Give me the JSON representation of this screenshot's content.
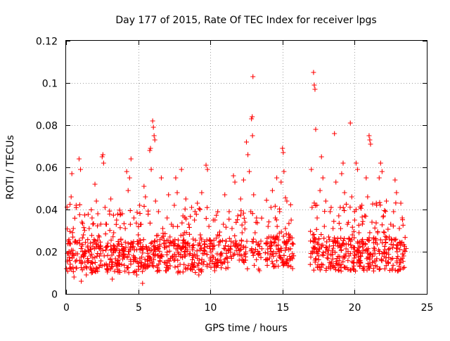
{
  "chart_data": {
    "type": "scatter",
    "title": "Day 177 of 2015, Rate Of TEC Index for receiver lpgs",
    "xlabel": "GPS time / hours",
    "ylabel": "ROTI / TECUs",
    "xlim": [
      0,
      25
    ],
    "ylim": [
      0,
      0.12
    ],
    "xticks": [
      0,
      5,
      10,
      15,
      20,
      25
    ],
    "xtick_labels": [
      "0",
      "5",
      "10",
      "15",
      "20",
      "25"
    ],
    "yticks": [
      0,
      0.02,
      0.04,
      0.06,
      0.08,
      0.1,
      0.12
    ],
    "ytick_labels": [
      "0",
      "0.02",
      "0.04",
      "0.06",
      "0.08",
      "0.1",
      "0.12"
    ],
    "grid": true,
    "marker": "+",
    "marker_color": "#ff0000",
    "series": [
      {
        "name": "ROTI",
        "points": [
          [
            0.1,
            0.016
          ],
          [
            0.2,
            0.02
          ],
          [
            0.3,
            0.012
          ],
          [
            0.35,
            0.046
          ],
          [
            0.4,
            0.057
          ],
          [
            0.5,
            0.031
          ],
          [
            0.55,
            0.008
          ],
          [
            0.6,
            0.025
          ],
          [
            0.7,
            0.042
          ],
          [
            0.8,
            0.019
          ],
          [
            0.9,
            0.064
          ],
          [
            1.0,
            0.059
          ],
          [
            1.05,
            0.006
          ],
          [
            1.1,
            0.034
          ],
          [
            1.2,
            0.028
          ],
          [
            1.3,
            0.015
          ],
          [
            1.4,
            0.009
          ],
          [
            1.5,
            0.022
          ],
          [
            1.6,
            0.031
          ],
          [
            1.7,
            0.018
          ],
          [
            1.8,
            0.036
          ],
          [
            1.9,
            0.012
          ],
          [
            2.0,
            0.052
          ],
          [
            2.1,
            0.044
          ],
          [
            2.2,
            0.038
          ],
          [
            2.3,
            0.027
          ],
          [
            2.4,
            0.019
          ],
          [
            2.5,
            0.065
          ],
          [
            2.55,
            0.066
          ],
          [
            2.6,
            0.062
          ],
          [
            2.7,
            0.041
          ],
          [
            2.8,
            0.033
          ],
          [
            2.9,
            0.024
          ],
          [
            3.0,
            0.014
          ],
          [
            3.1,
            0.045
          ],
          [
            3.2,
            0.007
          ],
          [
            3.3,
            0.029
          ],
          [
            3.4,
            0.021
          ],
          [
            3.5,
            0.035
          ],
          [
            3.6,
            0.016
          ],
          [
            3.7,
            0.011
          ],
          [
            3.8,
            0.026
          ],
          [
            3.9,
            0.038
          ],
          [
            4.0,
            0.019
          ],
          [
            4.1,
            0.031
          ],
          [
            4.2,
            0.058
          ],
          [
            4.3,
            0.049
          ],
          [
            4.4,
            0.055
          ],
          [
            4.5,
            0.064
          ],
          [
            4.6,
            0.024
          ],
          [
            4.7,
            0.036
          ],
          [
            4.8,
            0.017
          ],
          [
            4.9,
            0.009
          ],
          [
            5.0,
            0.028
          ],
          [
            5.1,
            0.042
          ],
          [
            5.2,
            0.033
          ],
          [
            5.3,
            0.005
          ],
          [
            5.4,
            0.051
          ],
          [
            5.5,
            0.046
          ],
          [
            5.6,
            0.021
          ],
          [
            5.7,
            0.013
          ],
          [
            5.8,
            0.068
          ],
          [
            5.85,
            0.069
          ],
          [
            5.9,
            0.059
          ],
          [
            6.0,
            0.082
          ],
          [
            6.05,
            0.079
          ],
          [
            6.1,
            0.075
          ],
          [
            6.15,
            0.073
          ],
          [
            6.2,
            0.044
          ],
          [
            6.3,
            0.025
          ],
          [
            6.4,
            0.039
          ],
          [
            6.5,
            0.017
          ],
          [
            6.6,
            0.055
          ],
          [
            6.7,
            0.031
          ],
          [
            6.8,
            0.022
          ],
          [
            6.9,
            0.011
          ],
          [
            7.0,
            0.036
          ],
          [
            7.1,
            0.047
          ],
          [
            7.2,
            0.027
          ],
          [
            7.3,
            0.033
          ],
          [
            7.4,
            0.018
          ],
          [
            7.5,
            0.042
          ],
          [
            7.6,
            0.055
          ],
          [
            7.7,
            0.048
          ],
          [
            7.8,
            0.023
          ],
          [
            7.9,
            0.014
          ],
          [
            8.0,
            0.059
          ],
          [
            8.1,
            0.037
          ],
          [
            8.2,
            0.029
          ],
          [
            8.3,
            0.045
          ],
          [
            8.4,
            0.021
          ],
          [
            8.5,
            0.033
          ],
          [
            8.6,
            0.012
          ],
          [
            8.7,
            0.041
          ],
          [
            8.8,
            0.026
          ],
          [
            8.9,
            0.035
          ],
          [
            9.0,
            0.018
          ],
          [
            9.1,
            0.043
          ],
          [
            9.2,
            0.009
          ],
          [
            9.3,
            0.028
          ],
          [
            9.4,
            0.048
          ],
          [
            9.5,
            0.014
          ],
          [
            9.6,
            0.022
          ],
          [
            9.7,
            0.061
          ],
          [
            9.8,
            0.059
          ],
          [
            9.9,
            0.032
          ],
          [
            10.0,
            0.017
          ],
          [
            10.1,
            0.024
          ],
          [
            10.2,
            0.035
          ],
          [
            10.3,
            0.011
          ],
          [
            10.5,
            0.028
          ],
          [
            10.7,
            0.019
          ],
          [
            10.9,
            0.033
          ],
          [
            11.0,
            0.047
          ],
          [
            11.1,
            0.025
          ],
          [
            11.2,
            0.015
          ],
          [
            11.3,
            0.039
          ],
          [
            11.4,
            0.021
          ],
          [
            11.5,
            0.031
          ],
          [
            11.6,
            0.056
          ],
          [
            11.7,
            0.053
          ],
          [
            11.8,
            0.024
          ],
          [
            11.9,
            0.037
          ],
          [
            12.0,
            0.016
          ],
          [
            12.1,
            0.045
          ],
          [
            12.2,
            0.029
          ],
          [
            12.3,
            0.054
          ],
          [
            12.4,
            0.034
          ],
          [
            12.5,
            0.072
          ],
          [
            12.6,
            0.066
          ],
          [
            12.7,
            0.058
          ],
          [
            12.8,
            0.039
          ],
          [
            12.85,
            0.083
          ],
          [
            12.9,
            0.084
          ],
          [
            12.92,
            0.075
          ],
          [
            12.95,
            0.103
          ],
          [
            13.0,
            0.047
          ],
          [
            13.1,
            0.029
          ],
          [
            13.2,
            0.036
          ],
          [
            13.3,
            0.019
          ],
          [
            13.4,
            0.011
          ],
          [
            13.5,
            0.025
          ],
          [
            14.0,
            0.032
          ],
          [
            14.1,
            0.017
          ],
          [
            14.2,
            0.041
          ],
          [
            14.3,
            0.049
          ],
          [
            14.4,
            0.027
          ],
          [
            14.5,
            0.036
          ],
          [
            14.6,
            0.055
          ],
          [
            14.7,
            0.021
          ],
          [
            14.8,
            0.039
          ],
          [
            14.9,
            0.053
          ],
          [
            15.0,
            0.069
          ],
          [
            15.05,
            0.067
          ],
          [
            15.1,
            0.058
          ],
          [
            15.2,
            0.031
          ],
          [
            15.3,
            0.044
          ],
          [
            15.4,
            0.025
          ],
          [
            15.5,
            0.016
          ],
          [
            15.6,
            0.035
          ],
          [
            15.7,
            0.012
          ],
          [
            17.0,
            0.059
          ],
          [
            17.05,
            0.041
          ],
          [
            17.1,
            0.028
          ],
          [
            17.15,
            0.105
          ],
          [
            17.2,
            0.099
          ],
          [
            17.25,
            0.097
          ],
          [
            17.3,
            0.078
          ],
          [
            17.4,
            0.036
          ],
          [
            17.5,
            0.018
          ],
          [
            17.6,
            0.049
          ],
          [
            17.7,
            0.065
          ],
          [
            17.8,
            0.055
          ],
          [
            17.9,
            0.032
          ],
          [
            18.0,
            0.044
          ],
          [
            18.1,
            0.021
          ],
          [
            18.2,
            0.027
          ],
          [
            18.3,
            0.039
          ],
          [
            18.4,
            0.015
          ],
          [
            18.5,
            0.031
          ],
          [
            18.6,
            0.076
          ],
          [
            18.7,
            0.053
          ],
          [
            18.8,
            0.025
          ],
          [
            18.9,
            0.037
          ],
          [
            19.0,
            0.041
          ],
          [
            19.1,
            0.057
          ],
          [
            19.2,
            0.062
          ],
          [
            19.3,
            0.048
          ],
          [
            19.4,
            0.019
          ],
          [
            19.5,
            0.033
          ],
          [
            19.6,
            0.026
          ],
          [
            19.7,
            0.081
          ],
          [
            19.8,
            0.046
          ],
          [
            19.9,
            0.015
          ],
          [
            20.0,
            0.035
          ],
          [
            20.1,
            0.062
          ],
          [
            20.2,
            0.059
          ],
          [
            20.3,
            0.029
          ],
          [
            20.4,
            0.018
          ],
          [
            20.5,
            0.042
          ],
          [
            20.6,
            0.024
          ],
          [
            20.7,
            0.037
          ],
          [
            20.8,
            0.055
          ],
          [
            20.9,
            0.046
          ],
          [
            21.0,
            0.075
          ],
          [
            21.05,
            0.073
          ],
          [
            21.1,
            0.071
          ],
          [
            21.2,
            0.034
          ],
          [
            21.3,
            0.026
          ],
          [
            21.4,
            0.019
          ],
          [
            21.5,
            0.043
          ],
          [
            21.6,
            0.029
          ],
          [
            21.7,
            0.055
          ],
          [
            21.8,
            0.062
          ],
          [
            21.9,
            0.058
          ],
          [
            22.0,
            0.037
          ],
          [
            22.1,
            0.021
          ],
          [
            22.2,
            0.044
          ],
          [
            22.3,
            0.015
          ],
          [
            22.4,
            0.027
          ],
          [
            22.5,
            0.033
          ],
          [
            22.6,
            0.012
          ],
          [
            22.7,
            0.039
          ],
          [
            22.8,
            0.054
          ],
          [
            22.9,
            0.048
          ],
          [
            23.0,
            0.023
          ],
          [
            23.1,
            0.031
          ],
          [
            23.2,
            0.043
          ],
          [
            23.3,
            0.036
          ],
          [
            23.4,
            0.018
          ]
        ]
      }
    ],
    "dense_segments": [
      {
        "start": 0.0,
        "end": 9.8,
        "base": 0.017,
        "spread": 0.016,
        "density": 55
      },
      {
        "start": 9.9,
        "end": 13.6,
        "base": 0.018,
        "spread": 0.014,
        "density": 40
      },
      {
        "start": 13.8,
        "end": 15.8,
        "base": 0.02,
        "spread": 0.016,
        "density": 55
      },
      {
        "start": 16.9,
        "end": 23.6,
        "base": 0.018,
        "spread": 0.016,
        "density": 55
      }
    ]
  }
}
